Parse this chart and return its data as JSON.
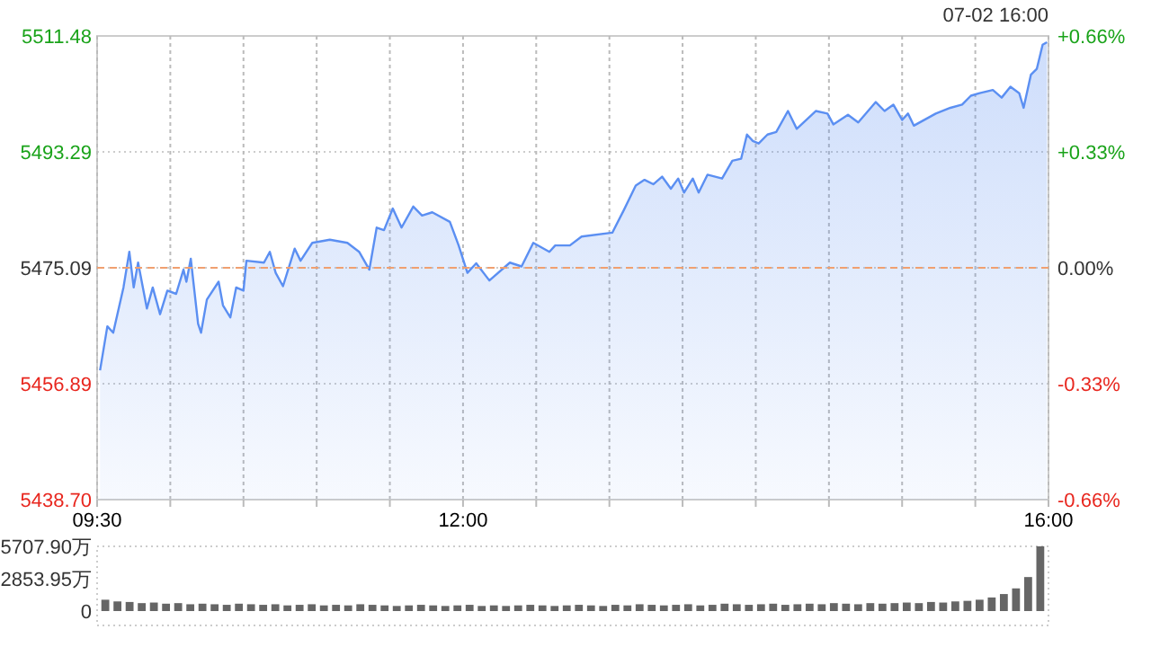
{
  "chart_data": [
    {
      "type": "area",
      "annotations": [
        "07-02 16:00"
      ],
      "x": [
        9.52,
        9.57,
        9.61,
        9.68,
        9.72,
        9.75,
        9.78,
        9.84,
        9.88,
        9.93,
        9.98,
        10.04,
        10.09,
        10.11,
        10.14,
        10.19,
        10.21,
        10.25,
        10.33,
        10.36,
        10.41,
        10.45,
        10.5,
        10.52,
        10.64,
        10.68,
        10.72,
        10.77,
        10.85,
        10.89,
        10.97,
        11.09,
        11.21,
        11.29,
        11.36,
        11.41,
        11.46,
        11.52,
        11.58,
        11.66,
        11.72,
        11.79,
        11.91,
        11.97,
        12.03,
        12.09,
        12.18,
        12.32,
        12.4,
        12.48,
        12.59,
        12.63,
        12.73,
        12.81,
        13.02,
        13.1,
        13.18,
        13.24,
        13.3,
        13.36,
        13.42,
        13.47,
        13.51,
        13.57,
        13.61,
        13.67,
        13.77,
        13.84,
        13.9,
        13.94,
        13.98,
        14.02,
        14.08,
        14.14,
        14.22,
        14.28,
        14.41,
        14.49,
        14.53,
        14.63,
        14.7,
        14.82,
        14.88,
        14.94,
        15,
        15.04,
        15.08,
        15.23,
        15.33,
        15.41,
        15.47,
        15.53,
        15.62,
        15.68,
        15.74,
        15.8,
        15.83,
        15.88,
        15.92,
        15.96,
        15.99
      ],
      "series": [
        {
          "color": "#5b8ff2",
          "values": [
            5459,
            5465.9,
            5464.9,
            5472,
            5477.6,
            5472,
            5475.9,
            5468.7,
            5472,
            5467.8,
            5471.5,
            5471,
            5474.8,
            5472.9,
            5476.5,
            5466.3,
            5464.9,
            5470.1,
            5472.9,
            5469.2,
            5467.3,
            5472,
            5471.5,
            5476.2,
            5475.9,
            5477.6,
            5474.3,
            5472.2,
            5478.1,
            5476.2,
            5479,
            5479.5,
            5479,
            5477.6,
            5474.8,
            5481.4,
            5481,
            5484.4,
            5481.4,
            5484.7,
            5483.3,
            5483.8,
            5482.3,
            5478.6,
            5474.3,
            5475.8,
            5473.1,
            5475.9,
            5475.3,
            5479,
            5477.6,
            5478.6,
            5478.6,
            5480,
            5480.6,
            5484.2,
            5488,
            5488.9,
            5488.2,
            5489.4,
            5487.5,
            5489.1,
            5486.9,
            5489.1,
            5486.9,
            5489.7,
            5489.1,
            5491.9,
            5492.2,
            5496,
            5495,
            5494.6,
            5496,
            5496.4,
            5499.7,
            5496.9,
            5499.7,
            5499.3,
            5497.6,
            5499.1,
            5497.9,
            5501.1,
            5499.7,
            5500.7,
            5498.3,
            5499.3,
            5497.4,
            5499.3,
            5500.2,
            5500.7,
            5502.1,
            5502.5,
            5503,
            5501.8,
            5503.5,
            5502.5,
            5500.2,
            5505.4,
            5506.3,
            5510.1,
            5510.5
          ]
        }
      ],
      "xlim": [
        9.5,
        16
      ],
      "xticks": [
        {
          "value": 9.5,
          "label": "09:30"
        },
        {
          "value": 10,
          "label": null
        },
        {
          "value": 10.5,
          "label": null
        },
        {
          "value": 11,
          "label": null
        },
        {
          "value": 11.5,
          "label": null
        },
        {
          "value": 12,
          "label": "12:00"
        },
        {
          "value": 12.5,
          "label": null
        },
        {
          "value": 13,
          "label": null
        },
        {
          "value": 13.5,
          "label": null
        },
        {
          "value": 14,
          "label": null
        },
        {
          "value": 14.5,
          "label": null
        },
        {
          "value": 15,
          "label": null
        },
        {
          "value": 15.5,
          "label": null
        },
        {
          "value": 16,
          "label": "16:00"
        }
      ],
      "ylim": [
        5438.7,
        5511.48
      ],
      "yticks": [
        {
          "value": 5438.7,
          "label": "5438.70"
        },
        {
          "value": 5456.89,
          "label": "5456.89"
        },
        5475.09,
        5493.29,
        5511.48
      ],
      "y2lim": [
        -0.66,
        0.66
      ],
      "y2ticks": [
        {
          "value": -0.66,
          "label": "-0.66%"
        },
        {
          "value": -0.33,
          "label": "-0.33%"
        },
        {
          "value": 0,
          "label": "0.00%"
        },
        {
          "value": 0.33,
          "label": "+0.33%"
        },
        {
          "value": 0.66,
          "label": "+0.66%"
        }
      ],
      "ref_lines": [
        {
          "axis": "y",
          "value": 5475.09,
          "color": "#f0a070",
          "line_style": "dashed"
        }
      ],
      "grid": true
    },
    {
      "type": "bar",
      "color": "#666666",
      "categories": [
        null,
        null,
        null,
        null,
        null,
        null,
        null,
        null,
        null,
        null,
        null,
        null,
        null,
        null,
        null,
        null,
        null,
        null,
        null,
        null,
        null,
        null,
        null,
        null,
        null,
        null,
        null,
        null,
        null,
        null,
        null,
        null,
        null,
        null,
        null,
        null,
        null,
        null,
        null,
        null,
        null,
        null,
        null,
        null,
        null,
        null,
        null,
        null,
        null,
        null,
        null,
        null,
        null,
        null,
        null,
        null,
        null,
        null,
        null,
        null,
        null,
        null,
        null,
        null,
        null,
        null,
        null,
        null,
        null,
        null,
        null,
        null,
        null,
        null,
        null,
        null,
        null,
        null
      ],
      "values": [
        1000,
        850,
        800,
        700,
        750,
        650,
        700,
        600,
        650,
        600,
        550,
        650,
        600,
        550,
        600,
        500,
        550,
        600,
        500,
        550,
        500,
        600,
        550,
        500,
        450,
        500,
        550,
        500,
        450,
        500,
        550,
        450,
        500,
        450,
        500,
        550,
        500,
        450,
        500,
        550,
        500,
        450,
        550,
        500,
        600,
        550,
        500,
        550,
        600,
        500,
        550,
        650,
        600,
        550,
        600,
        650,
        550,
        600,
        650,
        600,
        700,
        650,
        600,
        700,
        650,
        700,
        750,
        700,
        800,
        750,
        850,
        900,
        1000,
        1200,
        1500,
        2000,
        3000,
        5707.9
      ],
      "ylim": [
        0,
        5707.9
      ],
      "yticks": [
        0,
        {
          "value": 2853.95,
          "label": "2853.95万"
        },
        {
          "value": 5707.9,
          "label": "5707.90万"
        }
      ],
      "tick_labels": "y"
    }
  ]
}
